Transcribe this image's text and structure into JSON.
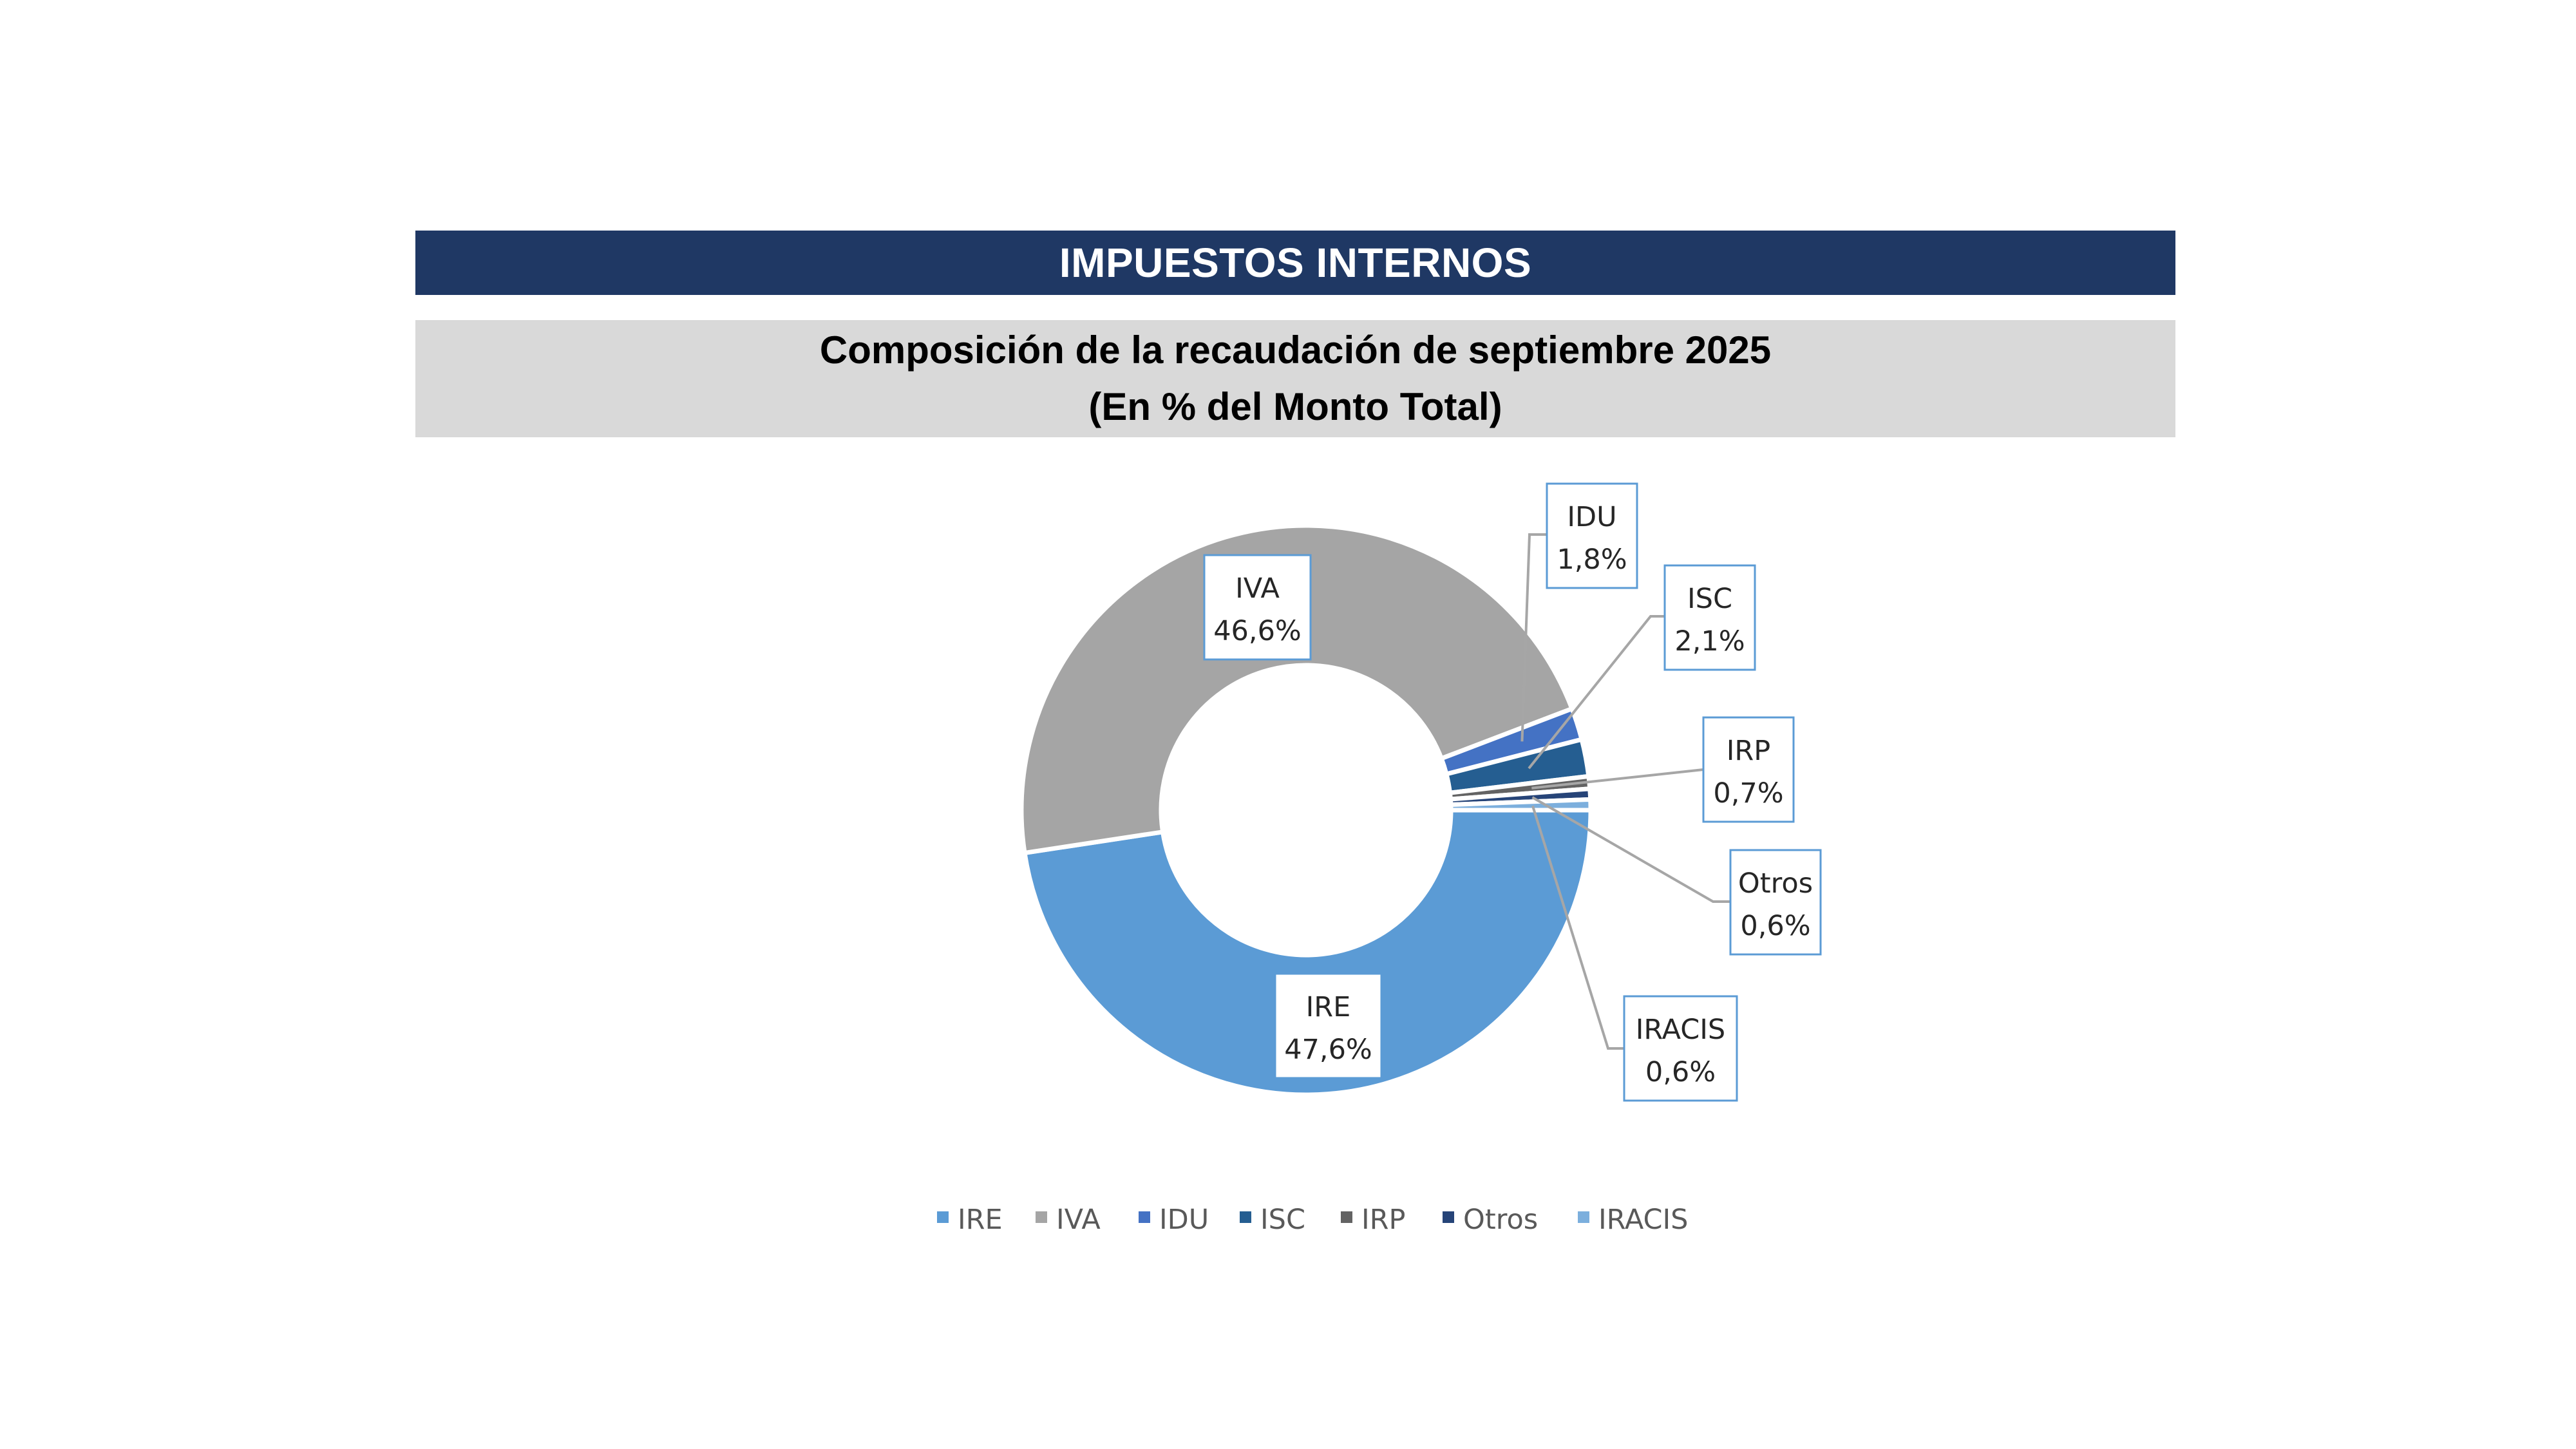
{
  "header": {
    "title": "IMPUESTOS INTERNOS"
  },
  "subtitle": {
    "line1": "Composición de la recaudación de septiembre 2025",
    "line2": "(En % del Monto Total)"
  },
  "chart_data": {
    "type": "pie",
    "variant": "doughnut",
    "legend_position": "bottom",
    "slices": [
      {
        "name": "IRE",
        "value": 47.6,
        "label": "47,6%",
        "color": "#5b9bd5"
      },
      {
        "name": "IVA",
        "value": 46.6,
        "label": "46,6%",
        "color": "#a5a5a5"
      },
      {
        "name": "IDU",
        "value": 1.8,
        "label": "1,8%",
        "color": "#4472c4"
      },
      {
        "name": "ISC",
        "value": 2.1,
        "label": "2,1%",
        "color": "#255e91"
      },
      {
        "name": "IRP",
        "value": 0.7,
        "label": "0,7%",
        "color": "#636363"
      },
      {
        "name": "Otros",
        "value": 0.6,
        "label": "0,6%",
        "color": "#264478"
      },
      {
        "name": "IRACIS",
        "value": 0.6,
        "label": "0,6%",
        "color": "#7cafdd"
      }
    ]
  }
}
